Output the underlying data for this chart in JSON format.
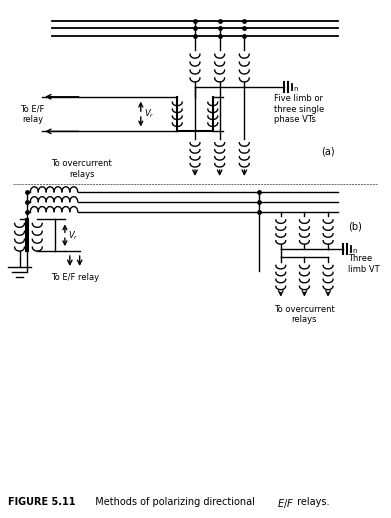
{
  "bg_color": "#ffffff",
  "line_color": "#000000",
  "label_a": "(a)",
  "label_b": "(b)",
  "label_five_limb": "Five limb or\nthree single\nphase VTs",
  "label_three_limb": "Three\nlimb VT",
  "label_to_ef_relay_a": "To E/F\nrelay",
  "label_to_ef_relay_b": "To E/F relay",
  "label_overcurrent_a": "To overcurrent\nrelays",
  "label_overcurrent_b": "To overcurrent\nrelays",
  "figsize": [
    3.91,
    5.18
  ],
  "dpi": 100
}
